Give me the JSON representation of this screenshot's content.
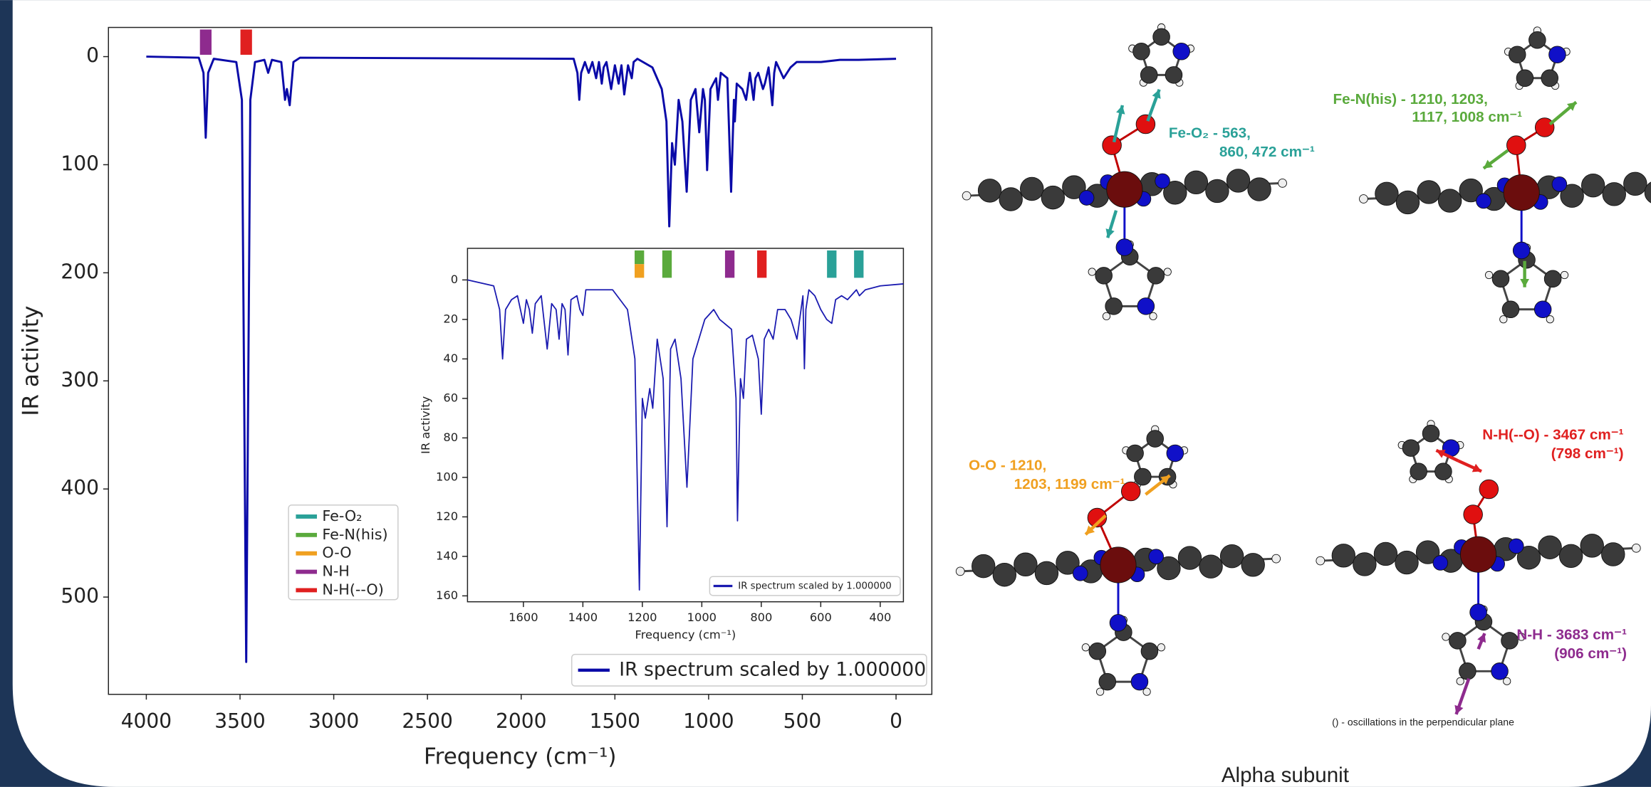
{
  "chart_data": [
    {
      "type": "line",
      "xlabel": "Frequency (cm⁻¹)",
      "ylabel": "IR activity",
      "x": [
        4000,
        3720,
        3695,
        3683,
        3670,
        3640,
        3520,
        3490,
        3467,
        3445,
        3420,
        3370,
        3350,
        3330,
        3280,
        3260,
        3250,
        3235,
        3215,
        3180,
        1720,
        1700,
        1690,
        1680,
        1660,
        1640,
        1620,
        1600,
        1585,
        1570,
        1560,
        1545,
        1520,
        1500,
        1480,
        1465,
        1450,
        1430,
        1410,
        1400,
        1380,
        1300,
        1250,
        1225,
        1210,
        1195,
        1180,
        1160,
        1140,
        1117,
        1095,
        1070,
        1050,
        1030,
        1020,
        1008,
        990,
        960,
        950,
        935,
        900,
        880,
        865,
        860,
        850,
        820,
        800,
        780,
        760,
        750,
        735,
        710,
        700,
        680,
        660,
        650,
        640,
        600,
        563,
        530,
        400,
        300,
        200,
        0
      ],
      "series": [
        {
          "name": "IR spectrum scaled by 1.000000",
          "color": "#0a0aa8",
          "values": [
            0,
            1,
            15,
            75,
            15,
            2,
            5,
            40,
            560,
            40,
            5,
            3,
            15,
            3,
            5,
            40,
            30,
            45,
            5,
            1,
            2,
            15,
            40,
            15,
            5,
            15,
            5,
            20,
            5,
            25,
            10,
            5,
            30,
            8,
            25,
            8,
            35,
            8,
            20,
            5,
            2,
            10,
            30,
            60,
            157,
            80,
            100,
            40,
            60,
            125,
            40,
            30,
            70,
            30,
            40,
            105,
            30,
            20,
            40,
            15,
            20,
            125,
            40,
            60,
            25,
            30,
            40,
            15,
            40,
            20,
            15,
            30,
            25,
            10,
            45,
            15,
            5,
            20,
            10,
            5,
            5,
            3,
            3,
            2
          ]
        }
      ],
      "xlim": [
        4202,
        -191
      ],
      "ylim": [
        590,
        -27
      ],
      "xticks": [
        4000,
        3500,
        3000,
        2500,
        2000,
        1500,
        1000,
        500,
        0
      ],
      "yticks": [
        0,
        100,
        200,
        300,
        400,
        500
      ],
      "markers": [
        {
          "x": 3683,
          "color": "#8e2b8e"
        },
        {
          "x": 3467,
          "color": "#e02020"
        }
      ],
      "marker_legend": [
        {
          "name": "Fe-O₂",
          "color": "#2aa198"
        },
        {
          "name": "Fe-N(his)",
          "color": "#5aaa3c"
        },
        {
          "name": "O-O",
          "color": "#f0a020"
        },
        {
          "name": "N-H",
          "color": "#8e2b8e"
        },
        {
          "name": "N-H(--O)",
          "color": "#e02020"
        }
      ],
      "legend": "lower right"
    },
    {
      "type": "line",
      "xlabel": "Frequency (cm⁻¹)",
      "ylabel": "IR activity",
      "x": [
        1788,
        1700,
        1680,
        1670,
        1660,
        1640,
        1620,
        1600,
        1590,
        1580,
        1570,
        1560,
        1540,
        1520,
        1505,
        1490,
        1480,
        1470,
        1460,
        1450,
        1440,
        1420,
        1410,
        1400,
        1390,
        1300,
        1250,
        1225,
        1210,
        1200,
        1190,
        1175,
        1165,
        1150,
        1130,
        1117,
        1105,
        1090,
        1070,
        1050,
        1030,
        1010,
        990,
        960,
        940,
        900,
        885,
        880,
        870,
        860,
        850,
        830,
        810,
        800,
        790,
        775,
        760,
        745,
        720,
        700,
        680,
        660,
        655,
        650,
        640,
        620,
        600,
        580,
        563,
        550,
        530,
        510,
        480,
        470,
        450,
        400,
        322
      ],
      "series": [
        {
          "name": "IR spectrum scaled by 1.000000",
          "color": "#1a1ab0",
          "values": [
            0,
            3,
            15,
            40,
            15,
            10,
            8,
            22,
            10,
            15,
            27,
            12,
            8,
            35,
            12,
            15,
            30,
            12,
            15,
            38,
            10,
            8,
            15,
            18,
            5,
            5,
            15,
            40,
            157,
            60,
            70,
            55,
            65,
            30,
            50,
            125,
            35,
            30,
            50,
            105,
            40,
            30,
            20,
            15,
            20,
            25,
            60,
            122,
            50,
            60,
            30,
            28,
            40,
            68,
            30,
            25,
            30,
            15,
            15,
            20,
            30,
            8,
            45,
            15,
            5,
            8,
            15,
            20,
            22,
            10,
            8,
            10,
            5,
            8,
            5,
            3,
            2
          ]
        }
      ],
      "xlim": [
        1788,
        322
      ],
      "ylim": [
        163,
        -16
      ],
      "xticks": [
        1600,
        1400,
        1200,
        1000,
        800,
        600,
        400
      ],
      "yticks": [
        0,
        20,
        40,
        60,
        80,
        100,
        120,
        140,
        160
      ],
      "markers": [
        {
          "x": 1210,
          "color": "#5aaa3c"
        },
        {
          "x": 1210,
          "color": "#f0a020"
        },
        {
          "x": 1117,
          "color": "#5aaa3c"
        },
        {
          "x": 906,
          "color": "#8e2b8e"
        },
        {
          "x": 798,
          "color": "#e02020"
        },
        {
          "x": 563,
          "color": "#2aa198"
        },
        {
          "x": 472,
          "color": "#2aa198"
        }
      ],
      "legend": "lower right"
    }
  ],
  "annotations": [
    {
      "lines": [
        "Fe-O₂ - 563,",
        "860, 472 cm⁻¹"
      ],
      "color": "#2aa198"
    },
    {
      "lines": [
        "Fe-N(his) - 1210, 1203,",
        "1117, 1008 cm⁻¹"
      ],
      "color": "#5aaa3c"
    },
    {
      "lines": [
        "O-O - 1210,",
        "1203, 1199 cm⁻¹"
      ],
      "color": "#f0a020"
    },
    {
      "lines": [
        "N-H(--O) - 3467 cm⁻¹",
        "(798 cm⁻¹)"
      ],
      "color": "#e02020"
    },
    {
      "lines": [
        "N-H - 3683 cm⁻¹",
        "(906 cm⁻¹)"
      ],
      "color": "#8e2b8e"
    }
  ],
  "footnote": "() - oscillations in the perpendicular plane",
  "caption": "Alpha subunit"
}
